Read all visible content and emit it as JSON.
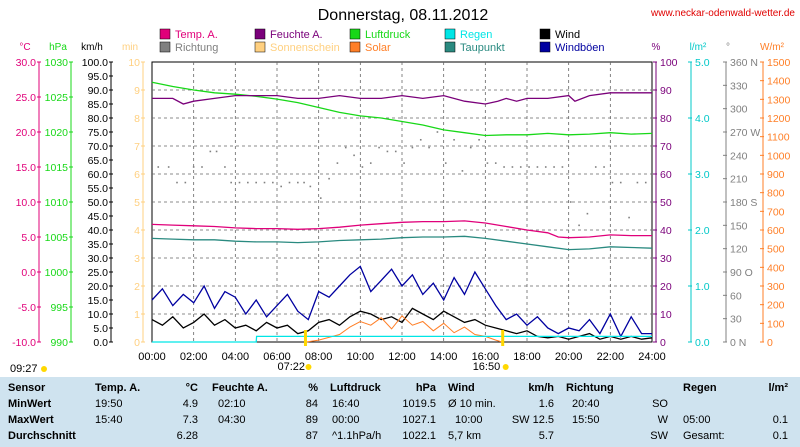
{
  "header": {
    "title": "Donnerstag, 08.11.2012",
    "site": "www.neckar-odenwald-wetter.de"
  },
  "legend": [
    {
      "label": "Temp. A.",
      "color": "#e0007a"
    },
    {
      "label": "Feuchte A.",
      "color": "#7a007a"
    },
    {
      "label": "Luftdruck",
      "color": "#18d818"
    },
    {
      "label": "Regen",
      "color": "#00e6e6"
    },
    {
      "label": "Wind",
      "color": "#000000"
    },
    {
      "label": "Richtung",
      "color": "#808080"
    },
    {
      "label": "Sonnenschein",
      "color": "#ffd080"
    },
    {
      "label": "Solar",
      "color": "#ff7f27"
    },
    {
      "label": "Taupunkt",
      "color": "#2a8a80"
    },
    {
      "label": "Windböen",
      "color": "#0000a0"
    }
  ],
  "axes": {
    "temp": {
      "unit": "°C",
      "color": "#e0007a",
      "ticks": [
        "30.0",
        "25.0",
        "20.0",
        "15.0",
        "10.0",
        "5.0",
        "0.0",
        "-5.0",
        "-10.0"
      ]
    },
    "pressure": {
      "unit": "hPa",
      "color": "#18d818",
      "ticks": [
        "1030",
        "1025",
        "1020",
        "1015",
        "1010",
        "1005",
        "1000",
        "995",
        "990"
      ]
    },
    "wind": {
      "unit": "km/h",
      "color": "#000000",
      "ticks": [
        "100.0",
        "95.0",
        "90.0",
        "85.0",
        "80.0",
        "75.0",
        "70.0",
        "65.0",
        "60.0",
        "55.0",
        "50.0",
        "45.0",
        "40.0",
        "35.0",
        "30.0",
        "25.0",
        "20.0",
        "15.0",
        "10.0",
        "5.0",
        "0.0"
      ]
    },
    "sun": {
      "unit": "min",
      "color": "#ffd080",
      "ticks": [
        "10",
        "9",
        "8",
        "7",
        "6",
        "5",
        "4",
        "3",
        "2",
        "1",
        "0"
      ]
    },
    "humidity": {
      "unit": "%",
      "color": "#7a007a",
      "ticks": [
        "100",
        "90",
        "80",
        "70",
        "60",
        "50",
        "40",
        "30",
        "20",
        "10",
        "0"
      ]
    },
    "rain": {
      "unit": "l/m²",
      "color": "#00c8c8",
      "ticks": [
        "5.0",
        "4.0",
        "3.0",
        "2.0",
        "1.0",
        "0.0"
      ]
    },
    "direction": {
      "unit": "°",
      "color": "#808080",
      "ticks": [
        "360 N",
        "330",
        "300",
        "270 W",
        "240",
        "210",
        "180 S",
        "150",
        "120",
        "90 O",
        "60",
        "30",
        "0 N"
      ]
    },
    "solar": {
      "unit": "W/m²",
      "color": "#ff7f27",
      "ticks": [
        "1500",
        "1400",
        "1300",
        "1200",
        "1100",
        "1000",
        "900",
        "800",
        "700",
        "600",
        "500",
        "400",
        "300",
        "200",
        "100",
        "0"
      ]
    },
    "time": {
      "ticks": [
        "00:00",
        "02:00",
        "04:00",
        "06:00",
        "08:00",
        "10:00",
        "12:00",
        "14:00",
        "16:00",
        "18:00",
        "20:00",
        "22:00",
        "24:00"
      ]
    }
  },
  "sun_events": {
    "first": "09:27",
    "sunrise": "07:22",
    "sunset": "16:50"
  },
  "chart_data": {
    "type": "line",
    "title": "Donnerstag, 08.11.2012",
    "x_unit": "hours",
    "xlim": [
      0,
      24
    ],
    "series": [
      {
        "name": "Luftdruck",
        "unit": "hPa",
        "ylim": [
          990,
          1030
        ],
        "x": [
          0,
          0.5,
          1,
          2,
          3,
          4,
          5,
          6,
          7,
          8,
          9,
          10,
          11,
          12,
          13,
          14,
          15,
          16,
          17,
          18,
          19,
          20,
          21,
          22,
          23,
          24
        ],
        "y": [
          1027.1,
          1026.8,
          1026.5,
          1026.0,
          1025.6,
          1025.4,
          1025.1,
          1024.7,
          1024.2,
          1023.5,
          1022.8,
          1022.3,
          1022.0,
          1021.5,
          1021.0,
          1020.3,
          1019.9,
          1019.5,
          1019.6,
          1019.6,
          1019.8,
          1019.6,
          1019.7,
          1019.9,
          1019.7,
          1019.8
        ]
      },
      {
        "name": "Feuchte A.",
        "unit": "%",
        "ylim": [
          0,
          100
        ],
        "x": [
          0,
          1,
          1.5,
          2,
          3,
          4,
          5,
          6,
          7,
          8,
          9,
          10,
          11,
          12,
          13,
          14,
          15,
          16,
          16.6,
          17,
          17.5,
          18,
          19,
          20,
          20.3,
          21,
          22,
          23,
          24
        ],
        "y": [
          87,
          87,
          85,
          86,
          87,
          88,
          88,
          88,
          87,
          87,
          88,
          87,
          87,
          88,
          87,
          88,
          86,
          85,
          86,
          87,
          86,
          87,
          87,
          88,
          86,
          88,
          89,
          89,
          89
        ]
      },
      {
        "name": "Temp. A.",
        "unit": "°C",
        "ylim": [
          -10,
          30
        ],
        "x": [
          0,
          1,
          2,
          3,
          4,
          5,
          6,
          7,
          8,
          9,
          10,
          11,
          12,
          13,
          14,
          15,
          16,
          17,
          18,
          19,
          19.5,
          20,
          21,
          22,
          23,
          24
        ],
        "y": [
          6.8,
          6.7,
          6.6,
          6.5,
          6.3,
          6.2,
          6.2,
          6.1,
          6.2,
          6.4,
          6.7,
          6.9,
          7.1,
          7.2,
          7.2,
          7.3,
          7.0,
          6.5,
          6.0,
          5.6,
          5.0,
          4.9,
          5.0,
          5.3,
          5.2,
          5.2
        ]
      },
      {
        "name": "Taupunkt",
        "unit": "°C",
        "ylim": [
          -10,
          30
        ],
        "x": [
          0,
          1,
          2,
          3,
          4,
          5,
          6,
          7,
          8,
          9,
          10,
          11,
          12,
          13,
          14,
          15,
          16,
          17,
          18,
          19,
          20,
          21,
          22,
          23,
          24
        ],
        "y": [
          4.8,
          4.7,
          4.6,
          4.6,
          4.4,
          4.3,
          4.3,
          4.2,
          4.3,
          4.5,
          4.6,
          4.7,
          4.9,
          5.0,
          5.0,
          5.1,
          4.8,
          4.4,
          4.0,
          3.6,
          3.2,
          3.3,
          3.6,
          3.5,
          3.4
        ]
      },
      {
        "name": "Windböen",
        "unit": "km/h",
        "x": [
          0,
          0.5,
          1,
          1.5,
          2,
          2.5,
          3,
          3.5,
          4,
          4.5,
          5,
          5.5,
          6,
          6.5,
          7,
          7.5,
          8,
          8.5,
          9,
          9.5,
          10,
          10.5,
          11,
          11.5,
          12,
          12.5,
          13,
          13.5,
          14,
          14.5,
          15,
          15.5,
          16,
          16.5,
          17,
          17.5,
          18,
          18.5,
          19,
          19.5,
          20,
          20.5,
          21,
          21.5,
          22,
          22.5,
          23,
          23.5,
          24
        ],
        "y": [
          15,
          19,
          13,
          17,
          14,
          20,
          12,
          18,
          16,
          10,
          15,
          9,
          13,
          17,
          11,
          8,
          18,
          16,
          20,
          24,
          27,
          18,
          22,
          26,
          20,
          24,
          17,
          21,
          15,
          23,
          17,
          25,
          19,
          13,
          8,
          10,
          6,
          9,
          5,
          3,
          5,
          4,
          8,
          3,
          10,
          2,
          9,
          3,
          3
        ]
      },
      {
        "name": "Wind",
        "unit": "km/h",
        "x": [
          0,
          0.5,
          1,
          1.5,
          2,
          2.5,
          3,
          3.5,
          4,
          4.5,
          5,
          5.5,
          6,
          6.5,
          7,
          7.5,
          8,
          8.5,
          9,
          9.5,
          10,
          10.5,
          11,
          11.5,
          12,
          12.5,
          13,
          13.5,
          14,
          14.5,
          15,
          15.5,
          16,
          16.5,
          17,
          17.5,
          18,
          18.5,
          19,
          19.5,
          20,
          20.5,
          21,
          21.5,
          22,
          22.5,
          23,
          23.5,
          24
        ],
        "y": [
          8,
          6,
          9,
          5,
          7,
          10,
          6,
          8,
          5,
          6,
          4,
          7,
          5,
          6,
          3,
          4,
          7,
          8,
          6,
          9,
          11,
          10,
          8,
          9,
          7,
          12,
          10,
          8,
          11,
          9,
          7,
          8,
          6,
          5,
          4,
          3,
          4,
          2,
          1.5,
          2,
          1,
          2,
          3,
          1,
          2,
          1,
          2,
          1,
          1.5
        ]
      },
      {
        "name": "Solar",
        "unit": "W/m²",
        "ylim": [
          0,
          1500
        ],
        "x": [
          7.4,
          8,
          9,
          9.5,
          10,
          10.5,
          11,
          11.5,
          12,
          12.5,
          13,
          13.5,
          14,
          14.5,
          15,
          15.5,
          16,
          16.5,
          16.8
        ],
        "y": [
          0,
          10,
          40,
          80,
          110,
          90,
          130,
          70,
          140,
          90,
          110,
          60,
          100,
          50,
          80,
          40,
          30,
          10,
          0
        ]
      },
      {
        "name": "Regen",
        "unit": "l/m²",
        "ylim": [
          0,
          5
        ],
        "x": [
          0,
          5,
          5.02,
          24
        ],
        "y": [
          0,
          0,
          0.1,
          0.1
        ]
      },
      {
        "name": "Richtung",
        "unit": "°",
        "ylim": [
          0,
          360
        ],
        "style": "dots",
        "x": [
          0.3,
          0.8,
          1.2,
          1.6,
          2.0,
          2.4,
          2.8,
          3.1,
          3.5,
          3.8,
          4.2,
          4.6,
          5.0,
          5.4,
          5.8,
          6.2,
          6.6,
          7.0,
          7.3,
          7.6,
          8.1,
          8.5,
          8.9,
          9.3,
          9.7,
          10.1,
          10.5,
          10.9,
          11.3,
          11.7,
          12.1,
          12.5,
          12.9,
          13.3,
          13.7,
          14.1,
          14.5,
          14.9,
          15.3,
          15.7,
          16.1,
          16.5,
          16.9,
          17.3,
          17.7,
          18.1,
          18.5,
          18.9,
          19.3,
          19.7,
          20.1,
          20.5,
          20.9,
          21.3,
          21.7,
          22.1,
          22.5,
          22.9,
          23.3,
          23.7
        ],
        "y": [
          225,
          225,
          205,
          205,
          225,
          225,
          245,
          245,
          225,
          205,
          205,
          205,
          205,
          205,
          205,
          200,
          205,
          205,
          205,
          200,
          185,
          210,
          230,
          250,
          240,
          225,
          230,
          250,
          245,
          245,
          230,
          250,
          260,
          250,
          270,
          230,
          260,
          220,
          250,
          260,
          230,
          230,
          225,
          225,
          225,
          225,
          225,
          225,
          225,
          225,
          180,
          150,
          165,
          225,
          225,
          205,
          205,
          160,
          205,
          205
        ]
      }
    ]
  },
  "stats": {
    "headers": {
      "sensor": "Sensor",
      "temp": "Temp. A.",
      "temp_unit": "°C",
      "hum": "Feuchte A.",
      "hum_unit": "%",
      "press": "Luftdruck",
      "press_unit": "hPa",
      "wind": "Wind",
      "wind_unit": "km/h",
      "dir": "Richtung",
      "rain": "Regen",
      "rain_unit": "l/m²"
    },
    "rows": [
      {
        "label": "MinWert",
        "temp_time": "19:50",
        "temp_val": "4.9",
        "hum_time": "02:10",
        "hum_val": "84",
        "press_time": "16:40",
        "press_val": "1019.5",
        "wind_time": "Ø 10 min.",
        "wind_val": "1.6",
        "dir_time": "20:40",
        "dir_val": "SO",
        "rain_time": "",
        "rain_val": ""
      },
      {
        "label": "MaxWert",
        "temp_time": "15:40",
        "temp_val": "7.3",
        "hum_time": "04:30",
        "hum_val": "89",
        "press_time": "00:00",
        "press_val": "1027.1",
        "wind_time": "SW 12.5",
        "wind_val": "",
        "wind_time2": "10:00",
        "dir_time": "15:50",
        "dir_val": "W",
        "rain_time": "05:00",
        "rain_val": "0.1"
      },
      {
        "label": "Durchschnitt",
        "temp_time": "",
        "temp_val": "6.28",
        "hum_time": "",
        "hum_val": "87",
        "press_time": "^1.1hPa/h",
        "press_val": "1022.1",
        "wind_time": "5,7 km",
        "wind_val": "5.7",
        "dir_time": "",
        "dir_val": "SW",
        "rain_time": "Gesamt:",
        "rain_val": "0.1"
      }
    ]
  }
}
